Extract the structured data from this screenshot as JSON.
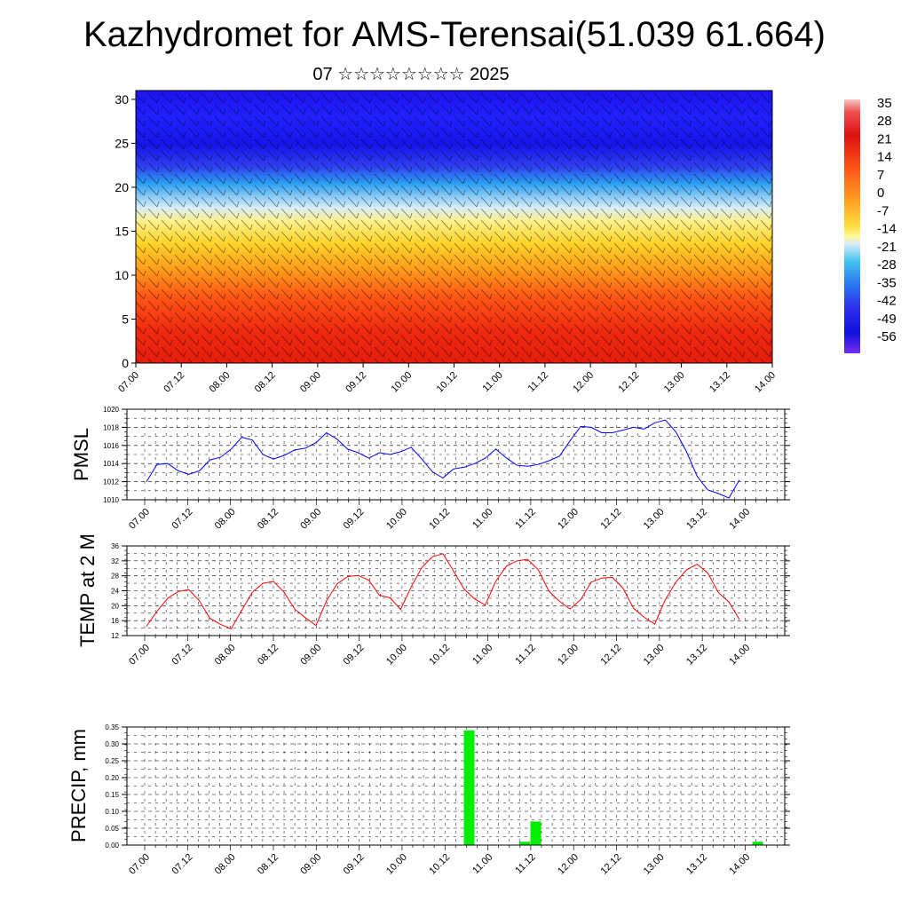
{
  "title": "Kazhydromet for AMS-Terensai(51.039 61.664)",
  "subtitle": "07 ☆☆☆☆☆☆☆☆ 2025",
  "colors": {
    "pmsl_line": "#0000ff",
    "temp_line": "#ff0000",
    "precip_bar": "#00ee00"
  },
  "chart_data": [
    {
      "type": "heatmap",
      "description_visible": "height-time cross section with wind barbs",
      "x_tick_labels": [
        "07.00",
        "07.12",
        "08.00",
        "08.12",
        "09.00",
        "09.12",
        "10.00",
        "10.12",
        "11.00",
        "11.12",
        "12.00",
        "12.12",
        "13.00",
        "13.12",
        "14.00"
      ],
      "y_tick_labels": [
        "0",
        "5",
        "10",
        "15",
        "20",
        "25",
        "30"
      ],
      "ylim": [
        0,
        31
      ],
      "colorbar_labels": [
        "35",
        "28",
        "21",
        "14",
        "7",
        "0",
        "-7",
        "-14",
        "-21",
        "-28",
        "-35",
        "-42",
        "-49",
        "-56"
      ]
    },
    {
      "type": "line",
      "ylabel": "PMSL",
      "x_tick_labels": [
        "07.00",
        "07.12",
        "08.00",
        "08.12",
        "09.00",
        "09.12",
        "10.00",
        "10.12",
        "11.00",
        "11.12",
        "12.00",
        "12.12",
        "13.00",
        "13.12",
        "14.00"
      ],
      "y_tick_labels": [
        "1010",
        "1012",
        "1014",
        "1016",
        "1018",
        "1020"
      ],
      "ylim": [
        1010,
        1020
      ],
      "grid": true,
      "series": [
        {
          "values": [
            1012.0,
            1013.9,
            1014.0,
            1013.2,
            1012.8,
            1013.2,
            1014.4,
            1014.7,
            1015.6,
            1016.9,
            1016.6,
            1015.0,
            1014.5,
            1014.9,
            1015.5,
            1015.7,
            1016.3,
            1017.4,
            1016.7,
            1015.6,
            1015.2,
            1014.6,
            1015.2,
            1015.0,
            1015.3,
            1015.8,
            1014.5,
            1013.1,
            1012.4,
            1013.4,
            1013.6,
            1014.0,
            1014.6,
            1015.6,
            1014.6,
            1013.8,
            1013.7,
            1013.9,
            1014.3,
            1014.8,
            1016.5,
            1018.1,
            1018.0,
            1017.4,
            1017.4,
            1017.7,
            1018.0,
            1017.8,
            1018.5,
            1018.8,
            1017.5,
            1015.3,
            1012.6,
            1011.1,
            1010.7,
            1010.2,
            1012.2
          ]
        }
      ]
    },
    {
      "type": "line",
      "ylabel": "TEMP at 2 M",
      "x_tick_labels": [
        "07.00",
        "07.12",
        "08.00",
        "08.12",
        "09.00",
        "09.12",
        "10.00",
        "10.12",
        "11.00",
        "11.12",
        "12.00",
        "12.12",
        "13.00",
        "13.12",
        "14.00"
      ],
      "y_tick_labels": [
        "12",
        "16",
        "20",
        "24",
        "28",
        "32",
        "36"
      ],
      "ylim": [
        12,
        36
      ],
      "grid": true,
      "series": [
        {
          "values": [
            14.5,
            18.5,
            22.0,
            23.8,
            24.3,
            21.3,
            16.6,
            15.0,
            13.8,
            18.8,
            23.6,
            26.0,
            26.5,
            23.6,
            19.1,
            16.8,
            14.7,
            21.3,
            25.8,
            27.8,
            28.1,
            26.8,
            22.8,
            22.1,
            19.0,
            25.0,
            30.2,
            33.1,
            33.9,
            29.3,
            24.4,
            21.8,
            20.2,
            26.6,
            30.6,
            32.0,
            32.4,
            29.6,
            23.9,
            21.2,
            19.1,
            21.6,
            26.3,
            27.4,
            27.6,
            24.7,
            19.3,
            16.9,
            15.1,
            21.6,
            26.3,
            29.6,
            31.1,
            28.8,
            23.6,
            21.0,
            16.3
          ]
        }
      ]
    },
    {
      "type": "bar",
      "ylabel": "PRECIP, mm",
      "x_tick_labels": [
        "07.00",
        "07.12",
        "08.00",
        "08.12",
        "09.00",
        "09.12",
        "10.00",
        "10.12",
        "11.00",
        "11.12",
        "12.00",
        "12.12",
        "13.00",
        "13.12",
        "14.00"
      ],
      "y_tick_labels": [
        "0.00",
        "0.05",
        "0.10",
        "0.15",
        "0.20",
        "0.25",
        "0.30",
        "0.35"
      ],
      "ylim": [
        0,
        0.35
      ],
      "grid": true,
      "values": [
        0,
        0,
        0,
        0,
        0,
        0,
        0,
        0,
        0,
        0,
        0,
        0,
        0,
        0,
        0,
        0,
        0,
        0,
        0,
        0,
        0,
        0,
        0,
        0,
        0,
        0,
        0,
        0,
        0,
        0.34,
        0,
        0,
        0,
        0,
        0.01,
        0.07,
        0,
        0,
        0,
        0,
        0,
        0,
        0,
        0,
        0,
        0,
        0,
        0,
        0,
        0,
        0,
        0,
        0,
        0,
        0,
        0.01,
        0
      ]
    }
  ]
}
